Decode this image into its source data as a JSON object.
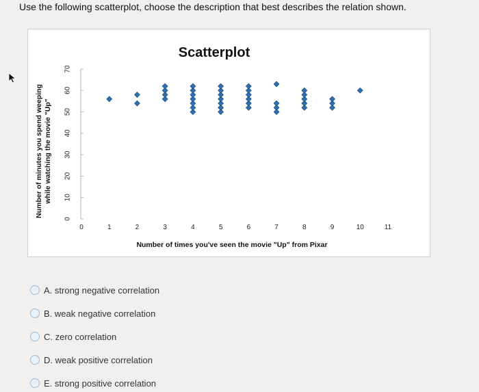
{
  "question": "Use the following scatterplot, choose the description that best describes the relation shown.",
  "chart_data": {
    "type": "scatter",
    "title": "Scatterplot",
    "xlabel": "Number of times you've seen the movie \"Up\" from Pixar",
    "ylabel_lines": [
      "Number of minutes you spend weeping",
      "while watching the movie \"Up\""
    ],
    "xlim": [
      0,
      11
    ],
    "ylim": [
      0,
      70
    ],
    "x_ticks": [
      "0",
      "1",
      "2",
      "3",
      "4",
      "5",
      "6",
      "7",
      "8",
      "9",
      "10",
      "11"
    ],
    "y_ticks": [
      "0",
      "10",
      "20",
      "30",
      "40",
      "50",
      "60",
      "70"
    ],
    "grid": false,
    "marker_color": "#2f6fb4",
    "points": [
      {
        "x": 1,
        "y": 56
      },
      {
        "x": 2,
        "y": 54
      },
      {
        "x": 2,
        "y": 58
      },
      {
        "x": 3,
        "y": 56
      },
      {
        "x": 3,
        "y": 58
      },
      {
        "x": 3,
        "y": 60
      },
      {
        "x": 3,
        "y": 62
      },
      {
        "x": 4,
        "y": 50
      },
      {
        "x": 4,
        "y": 52
      },
      {
        "x": 4,
        "y": 54
      },
      {
        "x": 4,
        "y": 56
      },
      {
        "x": 4,
        "y": 58
      },
      {
        "x": 4,
        "y": 60
      },
      {
        "x": 4,
        "y": 62
      },
      {
        "x": 5,
        "y": 50
      },
      {
        "x": 5,
        "y": 52
      },
      {
        "x": 5,
        "y": 54
      },
      {
        "x": 5,
        "y": 56
      },
      {
        "x": 5,
        "y": 58
      },
      {
        "x": 5,
        "y": 60
      },
      {
        "x": 5,
        "y": 62
      },
      {
        "x": 6,
        "y": 52
      },
      {
        "x": 6,
        "y": 54
      },
      {
        "x": 6,
        "y": 56
      },
      {
        "x": 6,
        "y": 58
      },
      {
        "x": 6,
        "y": 60
      },
      {
        "x": 6,
        "y": 62
      },
      {
        "x": 7,
        "y": 50
      },
      {
        "x": 7,
        "y": 52
      },
      {
        "x": 7,
        "y": 54
      },
      {
        "x": 7,
        "y": 63
      },
      {
        "x": 8,
        "y": 52
      },
      {
        "x": 8,
        "y": 54
      },
      {
        "x": 8,
        "y": 56
      },
      {
        "x": 8,
        "y": 58
      },
      {
        "x": 8,
        "y": 60
      },
      {
        "x": 9,
        "y": 52
      },
      {
        "x": 9,
        "y": 54
      },
      {
        "x": 9,
        "y": 56
      },
      {
        "x": 10,
        "y": 60
      }
    ]
  },
  "options": [
    {
      "label": "A. strong negative correlation"
    },
    {
      "label": "B. weak negative correlation"
    },
    {
      "label": "C. zero correlation"
    },
    {
      "label": "D. weak positive correlation"
    },
    {
      "label": "E. strong positive correlation"
    }
  ]
}
